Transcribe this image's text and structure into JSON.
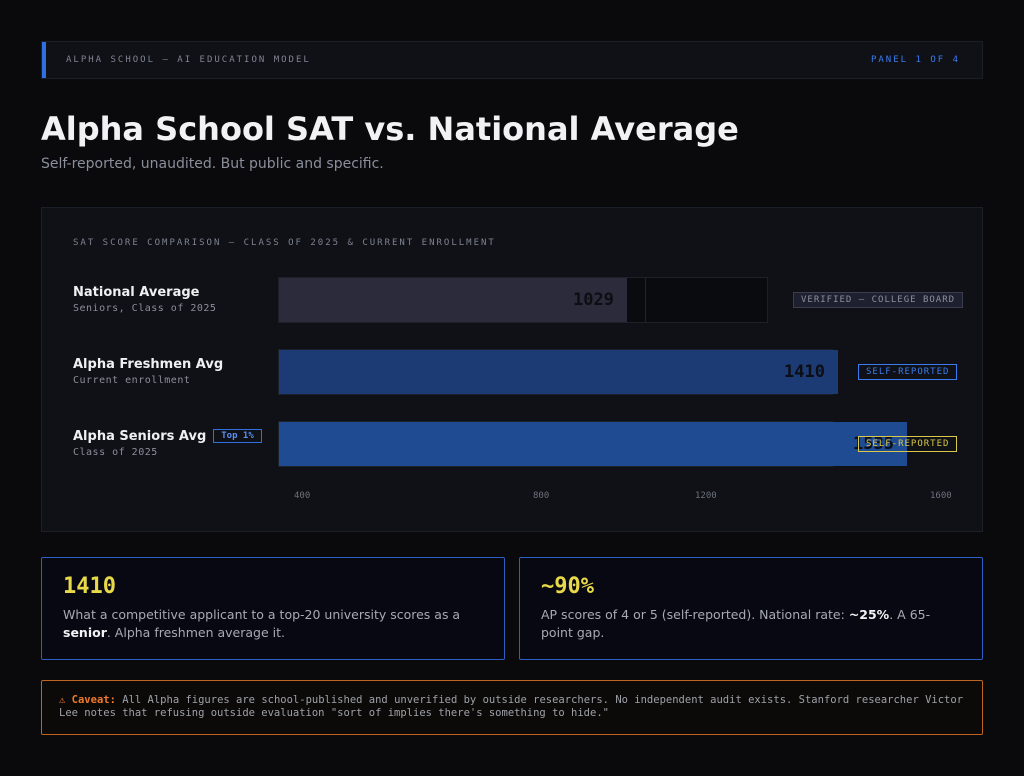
{
  "header": {
    "left": "ALPHA SCHOOL — AI EDUCATION MODEL",
    "right": "PANEL 1 OF 4"
  },
  "title": "Alpha School SAT vs. National Average",
  "subtitle": "Self-reported, unaudited. But public and specific.",
  "chart_data": {
    "type": "bar",
    "orientation": "horizontal",
    "title": "SAT SCORE COMPARISON — CLASS OF 2025 & CURRENT ENROLLMENT",
    "categories": [
      "National Average",
      "Alpha Freshmen Avg",
      "Alpha Seniors Avg"
    ],
    "category_sublabels": [
      "Seniors, Class of 2025",
      "Current enrollment",
      "Class of 2025"
    ],
    "values": [
      1029,
      1410,
      1535
    ],
    "value_labels": [
      "1029",
      "1410",
      "1535"
    ],
    "xlim": [
      400,
      1600
    ],
    "xticks": [
      "400",
      "800",
      "1200",
      "1600"
    ],
    "badge": "Top 1%",
    "status_labels": [
      "VERIFIED — COLLEGE BOARD",
      "SELF-REPORTED",
      "SELF-REPORTED"
    ],
    "colors": [
      "#2c2b3b",
      "#1c3a74",
      "#1f4b92"
    ],
    "status_colors": [
      "#8a8fa0",
      "#3b7bf0",
      "#d9c84a"
    ]
  },
  "cards": [
    {
      "value": "1410",
      "text_before": "What a competitive applicant to a top-20 university scores as a ",
      "bold": "senior",
      "text_after": ". Alpha freshmen average it."
    },
    {
      "value": "~90%",
      "text_before": "AP scores of 4 or 5 (self-reported). National rate: ",
      "bold": "~25%",
      "text_after": ". A 65-point gap."
    }
  ],
  "caveat": {
    "icon": "⚠",
    "label": "Caveat:",
    "text": "All Alpha figures are school-published and unverified by outside researchers. No independent audit exists. Stanford researcher Victor Lee notes that refusing outside evaluation \"sort of implies there's something to hide.\""
  },
  "colors": {
    "accent": "#2f6fe0",
    "highlight": "#e8d94a",
    "warning": "#ee7a2c"
  }
}
